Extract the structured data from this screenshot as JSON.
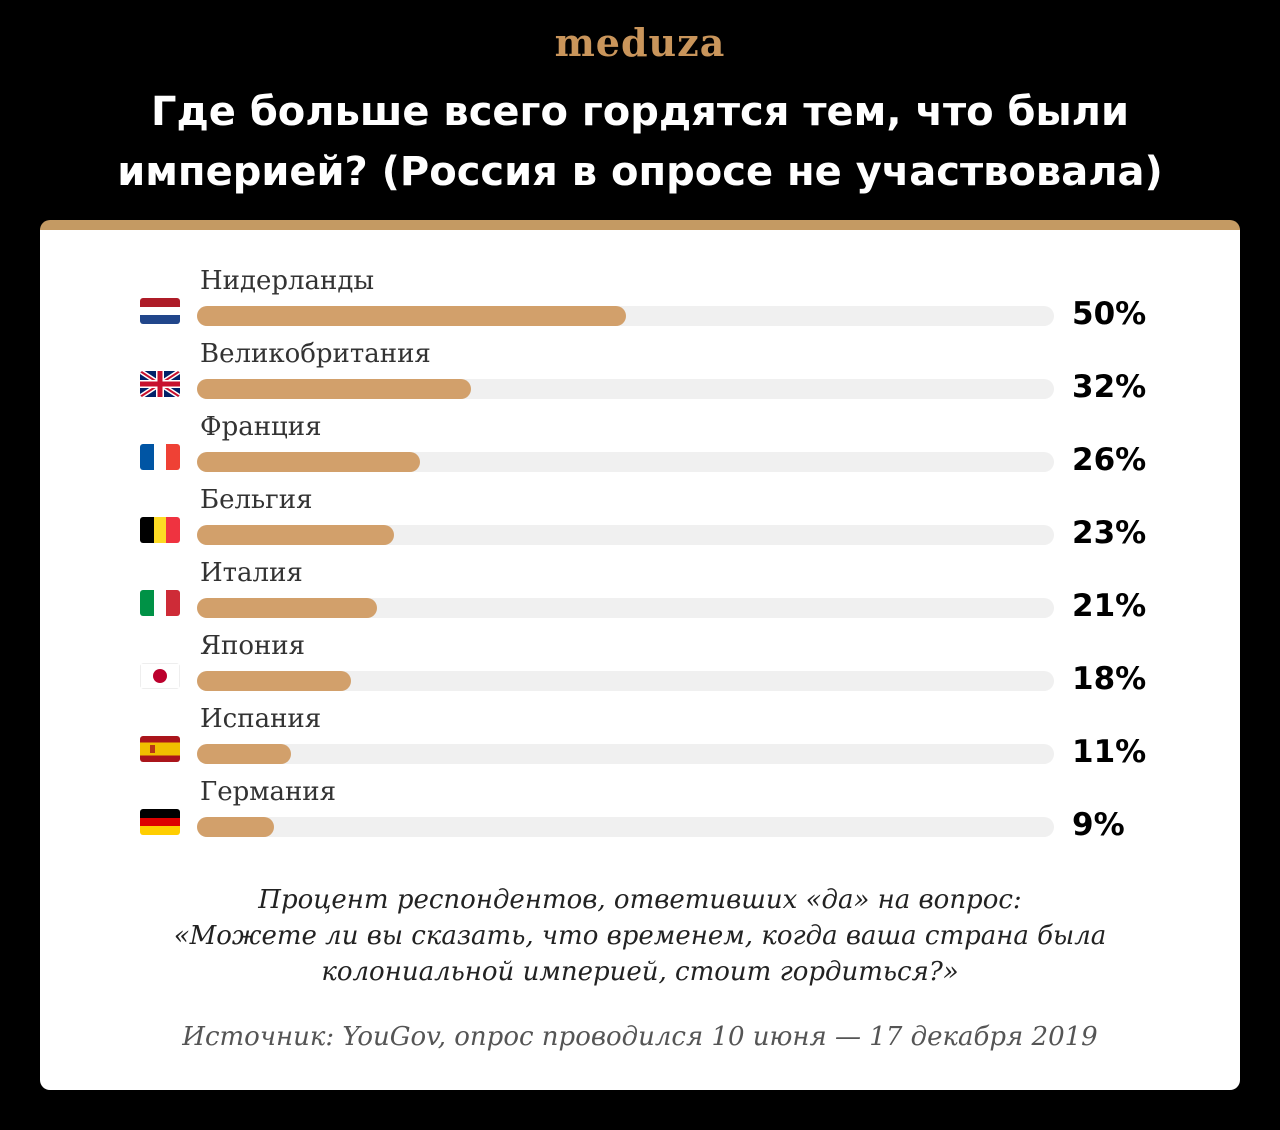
{
  "header": {
    "logo": "meduza",
    "title_line1": "Где больше всего гордятся тем, что были",
    "title_line2": "империей? (Россия в опросе не участвовала)"
  },
  "colors": {
    "background": "#000000",
    "accent": "#c9955b",
    "bar_fill": "#d2a06b",
    "bar_track": "#f0f0f0"
  },
  "chart_data": {
    "type": "bar",
    "orientation": "horizontal",
    "categories": [
      "Нидерланды",
      "Великобритания",
      "Франция",
      "Бельгия",
      "Италия",
      "Япония",
      "Испания",
      "Германия"
    ],
    "values": [
      50,
      32,
      26,
      23,
      21,
      18,
      11,
      9
    ],
    "value_labels": [
      "50%",
      "32%",
      "26%",
      "23%",
      "21%",
      "18%",
      "11%",
      "9%"
    ],
    "unit": "%",
    "xlim": [
      0,
      100
    ],
    "grid": false,
    "flags": [
      "netherlands-flag-icon",
      "uk-flag-icon",
      "france-flag-icon",
      "belgium-flag-icon",
      "italy-flag-icon",
      "japan-flag-icon",
      "spain-flag-icon",
      "germany-flag-icon"
    ]
  },
  "note": {
    "line1": "Процент респондентов, ответивших «да»  на вопрос:",
    "line2": "«Можете ли вы сказать, что временем, когда ваша страна была",
    "line3": "колониальной империей, стоит гордиться?»"
  },
  "source": "Источник: YouGov, опрос проводился 10 июня — 17 декабря 2019"
}
